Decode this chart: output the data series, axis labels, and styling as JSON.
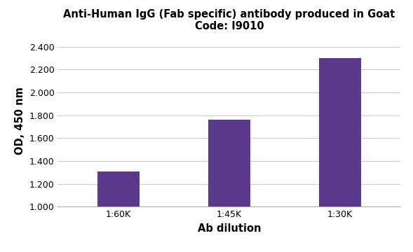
{
  "title_line1": "Anti-Human IgG (Fab specific) antibody produced in Goat",
  "title_line2": "Code: I9010",
  "categories": [
    "1:60K",
    "1:45K",
    "1:30K"
  ],
  "values": [
    1.305,
    1.76,
    2.3
  ],
  "bar_color": "#5b3a8e",
  "xlabel": "Ab dilution",
  "ylabel": "OD, 450 nm",
  "ylim": [
    1.0,
    2.5
  ],
  "yticks": [
    1.0,
    1.2,
    1.4,
    1.6,
    1.8,
    2.0,
    2.2,
    2.4
  ],
  "ytick_labels": [
    "1.000",
    "1.200",
    "1.400",
    "1.600",
    "1.800",
    "2.000",
    "2.200",
    "2.400"
  ],
  "grid_color": "#cccccc",
  "background_color": "#ffffff",
  "title_fontsize": 10.5,
  "axis_label_fontsize": 10.5,
  "tick_fontsize": 9
}
